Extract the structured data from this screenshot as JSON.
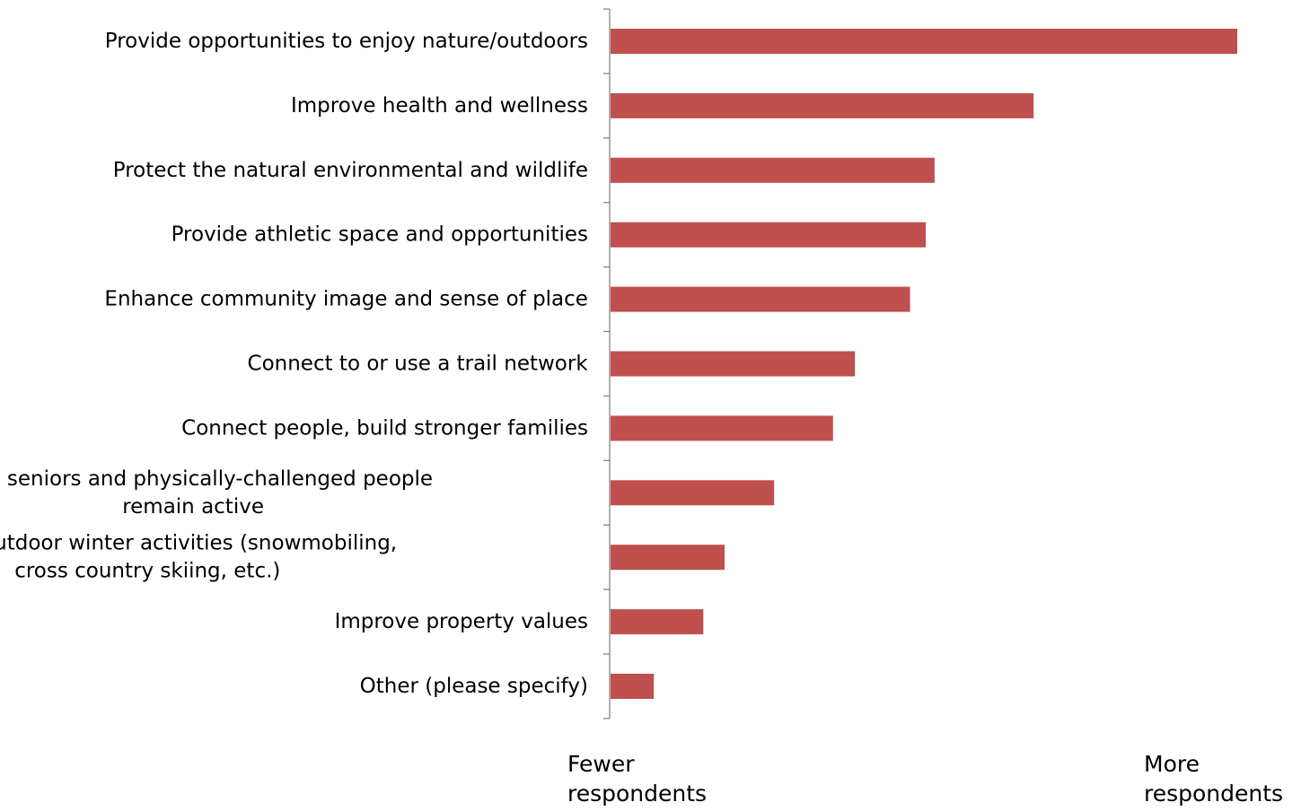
{
  "chart_data": {
    "type": "bar",
    "orientation": "horizontal",
    "categories": [
      "Provide opportunities to enjoy nature/outdoors",
      "Improve health and wellness",
      "Protect the natural environmental and wildlife",
      "Provide athletic space and opportunities",
      "Enhance community image and sense of place",
      "Connect to or use a trail network",
      "Connect people, build stronger families",
      "Help seniors and physically-challenged people remain active",
      "Provide outdoor winter activities (snowmobiling, cross country skiing, etc.)",
      "Improve property values",
      "Other (please specify)"
    ],
    "category_lines": [
      [
        "Provide opportunities to enjoy nature/outdoors"
      ],
      [
        "Improve health and wellness"
      ],
      [
        "Protect the natural environmental and wildlife"
      ],
      [
        "Provide athletic space and opportunities"
      ],
      [
        "Enhance community image and sense of place"
      ],
      [
        "Connect to or use a trail network"
      ],
      [
        "Connect people, build stronger families"
      ],
      [
        "Help seniors and physically-challenged people",
        "remain active"
      ],
      [
        "Provide outdoor winter activities (snowmobiling,",
        "cross country skiing, etc.)"
      ],
      [
        "Improve property values"
      ],
      [
        "Other (please specify)"
      ]
    ],
    "values": [
      100,
      67.5,
      51.7,
      50.3,
      47.8,
      39,
      35.5,
      26.1,
      18.2,
      14.8,
      6.9
    ],
    "value_scale": "relative share of respondents (longest bar = 100)",
    "xlim": [
      0,
      100
    ],
    "bar_color": "#C0504D",
    "grid": false,
    "legend": "none",
    "x_axis_notes": {
      "low": "Fewer\nrespondents",
      "high": "More\nrespondents"
    }
  }
}
